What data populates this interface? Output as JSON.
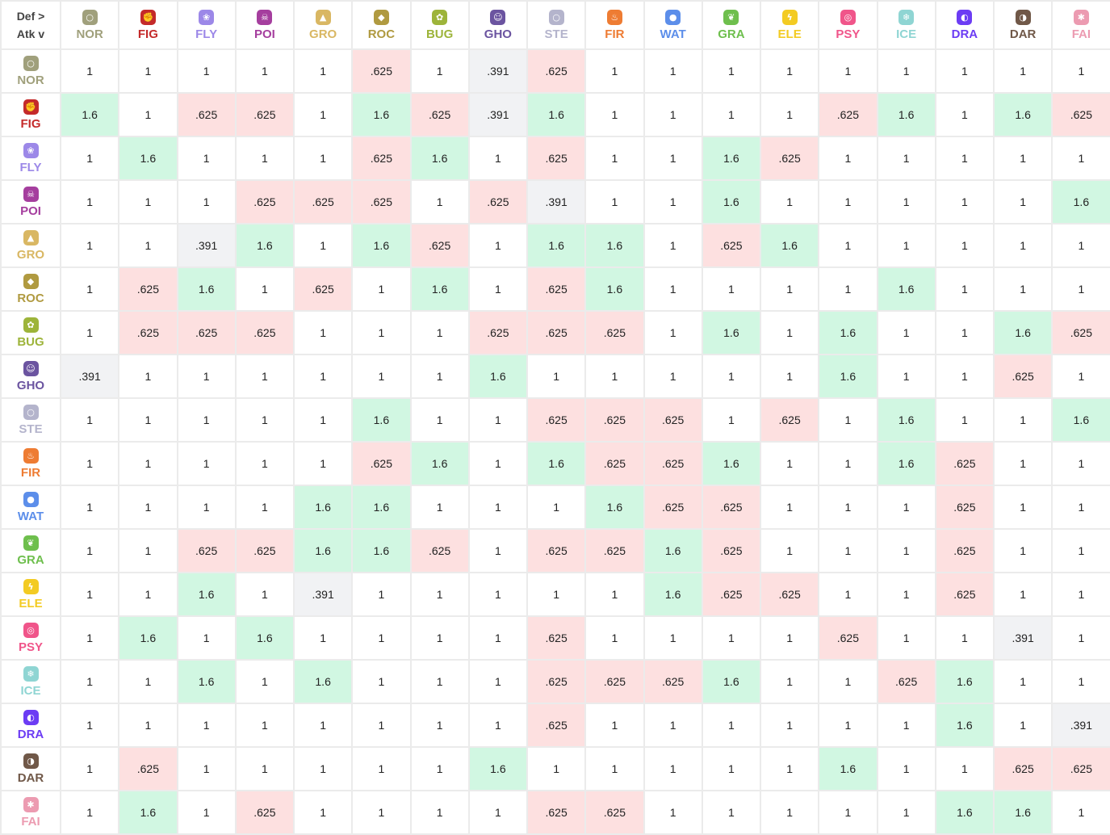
{
  "corner": {
    "def_label": "Def >",
    "atk_label": "Atk v"
  },
  "types": [
    {
      "abbr": "NOR",
      "icon": "normal-icon",
      "glyph": "○",
      "color": "#a0a07c"
    },
    {
      "abbr": "FIG",
      "icon": "fighting-icon",
      "glyph": "✊",
      "color": "#c42a2a"
    },
    {
      "abbr": "FLY",
      "icon": "flying-icon",
      "glyph": "❀",
      "color": "#9c88e8"
    },
    {
      "abbr": "POI",
      "icon": "poison-icon",
      "glyph": "☠",
      "color": "#a53e9e"
    },
    {
      "abbr": "GRO",
      "icon": "ground-icon",
      "glyph": "▲",
      "color": "#d9b763"
    },
    {
      "abbr": "ROC",
      "icon": "rock-icon",
      "glyph": "◆",
      "color": "#b09a40"
    },
    {
      "abbr": "BUG",
      "icon": "bug-icon",
      "glyph": "✿",
      "color": "#9db43a"
    },
    {
      "abbr": "GHO",
      "icon": "ghost-icon",
      "glyph": "☺",
      "color": "#6b54a0"
    },
    {
      "abbr": "STE",
      "icon": "steel-icon",
      "glyph": "○",
      "color": "#b4b4cc"
    },
    {
      "abbr": "FIR",
      "icon": "fire-icon",
      "glyph": "♨",
      "color": "#ee7c33"
    },
    {
      "abbr": "WAT",
      "icon": "water-icon",
      "glyph": "●",
      "color": "#5c8eea"
    },
    {
      "abbr": "GRA",
      "icon": "grass-icon",
      "glyph": "❦",
      "color": "#6ebf4d"
    },
    {
      "abbr": "ELE",
      "icon": "electric-icon",
      "glyph": "ϟ",
      "color": "#f3cb23"
    },
    {
      "abbr": "PSY",
      "icon": "psychic-icon",
      "glyph": "◎",
      "color": "#f0558a"
    },
    {
      "abbr": "ICE",
      "icon": "ice-icon",
      "glyph": "❄",
      "color": "#8fd5d3"
    },
    {
      "abbr": "DRA",
      "icon": "dragon-icon",
      "glyph": "◐",
      "color": "#6c3cf4"
    },
    {
      "abbr": "DAR",
      "icon": "dark-icon",
      "glyph": "◑",
      "color": "#705848"
    },
    {
      "abbr": "FAI",
      "icon": "fairy-icon",
      "glyph": "✱",
      "color": "#ec9bb1"
    }
  ],
  "cell_colors": {
    "super_effective": "#d1f7e2",
    "not_very_effective": "#fde0e0",
    "immune": "#f1f2f4"
  },
  "matrix": [
    [
      "1",
      "1",
      "1",
      "1",
      "1",
      ".625",
      "1",
      ".391",
      ".625",
      "1",
      "1",
      "1",
      "1",
      "1",
      "1",
      "1",
      "1",
      "1"
    ],
    [
      "1.6",
      "1",
      ".625",
      ".625",
      "1",
      "1.6",
      ".625",
      ".391",
      "1.6",
      "1",
      "1",
      "1",
      "1",
      ".625",
      "1.6",
      "1",
      "1.6",
      ".625"
    ],
    [
      "1",
      "1.6",
      "1",
      "1",
      "1",
      ".625",
      "1.6",
      "1",
      ".625",
      "1",
      "1",
      "1.6",
      ".625",
      "1",
      "1",
      "1",
      "1",
      "1"
    ],
    [
      "1",
      "1",
      "1",
      ".625",
      ".625",
      ".625",
      "1",
      ".625",
      ".391",
      "1",
      "1",
      "1.6",
      "1",
      "1",
      "1",
      "1",
      "1",
      "1.6"
    ],
    [
      "1",
      "1",
      ".391",
      "1.6",
      "1",
      "1.6",
      ".625",
      "1",
      "1.6",
      "1.6",
      "1",
      ".625",
      "1.6",
      "1",
      "1",
      "1",
      "1",
      "1"
    ],
    [
      "1",
      ".625",
      "1.6",
      "1",
      ".625",
      "1",
      "1.6",
      "1",
      ".625",
      "1.6",
      "1",
      "1",
      "1",
      "1",
      "1.6",
      "1",
      "1",
      "1"
    ],
    [
      "1",
      ".625",
      ".625",
      ".625",
      "1",
      "1",
      "1",
      ".625",
      ".625",
      ".625",
      "1",
      "1.6",
      "1",
      "1.6",
      "1",
      "1",
      "1.6",
      ".625"
    ],
    [
      ".391",
      "1",
      "1",
      "1",
      "1",
      "1",
      "1",
      "1.6",
      "1",
      "1",
      "1",
      "1",
      "1",
      "1.6",
      "1",
      "1",
      ".625",
      "1"
    ],
    [
      "1",
      "1",
      "1",
      "1",
      "1",
      "1.6",
      "1",
      "1",
      ".625",
      ".625",
      ".625",
      "1",
      ".625",
      "1",
      "1.6",
      "1",
      "1",
      "1.6"
    ],
    [
      "1",
      "1",
      "1",
      "1",
      "1",
      ".625",
      "1.6",
      "1",
      "1.6",
      ".625",
      ".625",
      "1.6",
      "1",
      "1",
      "1.6",
      ".625",
      "1",
      "1"
    ],
    [
      "1",
      "1",
      "1",
      "1",
      "1.6",
      "1.6",
      "1",
      "1",
      "1",
      "1.6",
      ".625",
      ".625",
      "1",
      "1",
      "1",
      ".625",
      "1",
      "1"
    ],
    [
      "1",
      "1",
      ".625",
      ".625",
      "1.6",
      "1.6",
      ".625",
      "1",
      ".625",
      ".625",
      "1.6",
      ".625",
      "1",
      "1",
      "1",
      ".625",
      "1",
      "1"
    ],
    [
      "1",
      "1",
      "1.6",
      "1",
      ".391",
      "1",
      "1",
      "1",
      "1",
      "1",
      "1.6",
      ".625",
      ".625",
      "1",
      "1",
      ".625",
      "1",
      "1"
    ],
    [
      "1",
      "1.6",
      "1",
      "1.6",
      "1",
      "1",
      "1",
      "1",
      ".625",
      "1",
      "1",
      "1",
      "1",
      ".625",
      "1",
      "1",
      ".391",
      "1"
    ],
    [
      "1",
      "1",
      "1.6",
      "1",
      "1.6",
      "1",
      "1",
      "1",
      ".625",
      ".625",
      ".625",
      "1.6",
      "1",
      "1",
      ".625",
      "1.6",
      "1",
      "1"
    ],
    [
      "1",
      "1",
      "1",
      "1",
      "1",
      "1",
      "1",
      "1",
      ".625",
      "1",
      "1",
      "1",
      "1",
      "1",
      "1",
      "1.6",
      "1",
      ".391"
    ],
    [
      "1",
      ".625",
      "1",
      "1",
      "1",
      "1",
      "1",
      "1.6",
      "1",
      "1",
      "1",
      "1",
      "1",
      "1.6",
      "1",
      "1",
      ".625",
      ".625"
    ],
    [
      "1",
      "1.6",
      "1",
      ".625",
      "1",
      "1",
      "1",
      "1",
      ".625",
      ".625",
      "1",
      "1",
      "1",
      "1",
      "1",
      "1.6",
      "1.6",
      "1"
    ]
  ]
}
